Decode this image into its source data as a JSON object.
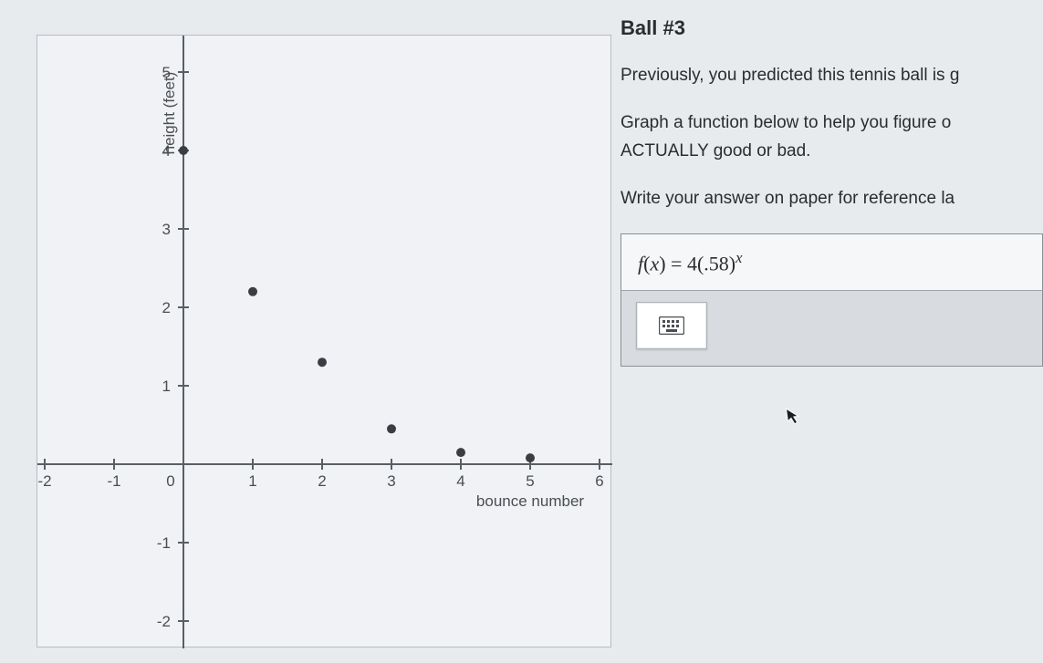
{
  "chart": {
    "type": "scatter",
    "xlabel": "bounce number",
    "ylabel": "height (feet)",
    "xlim": [
      -2,
      6
    ],
    "ylim": [
      -2.3,
      5.5
    ],
    "xtick_step": 1,
    "ytick_step": 1,
    "xticks": [
      -2,
      -1,
      0,
      1,
      2,
      3,
      4,
      5,
      6
    ],
    "yticks": [
      -2,
      -1,
      1,
      2,
      3,
      4,
      5
    ],
    "origin_label": "0",
    "points": [
      {
        "x": 0,
        "y": 4.0
      },
      {
        "x": 1,
        "y": 2.2
      },
      {
        "x": 2,
        "y": 1.3
      },
      {
        "x": 3,
        "y": 0.45
      },
      {
        "x": 4,
        "y": 0.15
      },
      {
        "x": 5,
        "y": 0.08
      }
    ],
    "point_color": "#3a3e42",
    "point_radius": 5,
    "axis_color": "#5a5f64",
    "background_color": "#f0f2f5",
    "border_color": "#b8bcc0",
    "label_fontsize": 17,
    "tick_fontsize": 17
  },
  "title": "Ball #3",
  "paragraphs": {
    "p1": "Previously, you predicted this tennis ball is g",
    "p2a": "Graph a function below to help you figure o",
    "p2b": "ACTUALLY good or bad.",
    "p3": "Write your answer on paper for reference la"
  },
  "formula": {
    "prefix": "f",
    "var": "x",
    "body": " = 4(.58)",
    "exp": "x",
    "raw": "f(x) = 4(.58)^x"
  },
  "icons": {
    "keyboard": "keyboard-icon"
  }
}
